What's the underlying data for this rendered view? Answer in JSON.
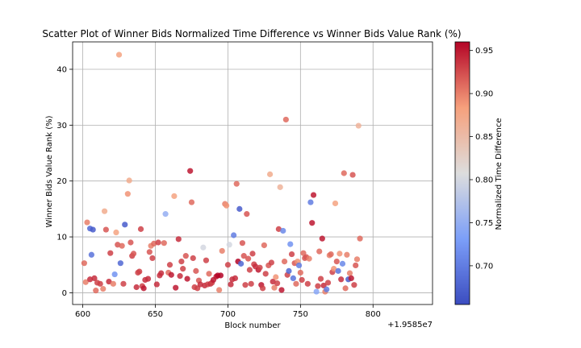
{
  "chart_data": {
    "type": "scatter",
    "title": "Scatter Plot of Winner Bids Normalized Time Difference vs Winner Bids Value Rank (%)",
    "xlabel": "Block number",
    "ylabel": "Winner Bids Value Rank (%)",
    "x_offset_label": "+1.9585e7",
    "x_ticks": [
      600,
      650,
      700,
      750,
      800
    ],
    "y_ticks": [
      0,
      10,
      20,
      30,
      40
    ],
    "xlim": [
      593,
      841
    ],
    "ylim": [
      -2.1,
      44.9
    ],
    "grid": true,
    "colorbar": {
      "label": "Normalized Time Difference",
      "colormap": "coolwarm",
      "range": [
        0.655,
        0.96
      ],
      "ticks": [
        0.7,
        0.75,
        0.8,
        0.85,
        0.9,
        0.95
      ],
      "tick_labels": [
        "0.70",
        "0.75",
        "0.80",
        "0.85",
        "0.90",
        "0.95"
      ]
    },
    "points": [
      [
        601,
        5.3,
        0.91
      ],
      [
        602,
        1.9,
        0.9
      ],
      [
        603,
        12.6,
        0.9
      ],
      [
        605,
        11.5,
        0.68
      ],
      [
        607,
        11.3,
        0.67
      ],
      [
        606,
        6.8,
        0.69
      ],
      [
        605,
        2.4,
        0.94
      ],
      [
        608,
        2.6,
        0.94
      ],
      [
        609,
        0.4,
        0.91
      ],
      [
        610,
        1.8,
        0.93
      ],
      [
        612,
        1.6,
        0.93
      ],
      [
        614,
        0.7,
        0.9
      ],
      [
        615,
        14.6,
        0.87
      ],
      [
        616,
        11.3,
        0.92
      ],
      [
        618,
        2.0,
        0.94
      ],
      [
        619,
        7.1,
        0.93
      ],
      [
        621,
        1.6,
        0.9
      ],
      [
        622,
        3.3,
        0.72
      ],
      [
        623,
        10.8,
        0.88
      ],
      [
        624,
        8.6,
        0.92
      ],
      [
        626,
        5.3,
        0.68
      ],
      [
        625,
        42.6,
        0.88
      ],
      [
        627,
        8.4,
        0.91
      ],
      [
        628,
        1.6,
        0.93
      ],
      [
        629,
        12.2,
        0.67
      ],
      [
        631,
        17.7,
        0.89
      ],
      [
        632,
        20.1,
        0.87
      ],
      [
        633,
        9.0,
        0.92
      ],
      [
        634,
        6.6,
        0.93
      ],
      [
        635,
        7.0,
        0.92
      ],
      [
        637,
        1.0,
        0.94
      ],
      [
        638,
        3.6,
        0.93
      ],
      [
        639,
        3.8,
        0.93
      ],
      [
        640,
        11.4,
        0.93
      ],
      [
        641,
        1.2,
        0.93
      ],
      [
        642,
        0.8,
        0.95
      ],
      [
        643,
        2.3,
        0.94
      ],
      [
        645,
        2.5,
        0.94
      ],
      [
        646,
        7.3,
        0.92
      ],
      [
        647,
        8.4,
        0.9
      ],
      [
        648,
        6.2,
        0.93
      ],
      [
        649,
        8.8,
        0.91
      ],
      [
        651,
        1.5,
        0.94
      ],
      [
        652,
        9.0,
        0.93
      ],
      [
        653,
        3.1,
        0.94
      ],
      [
        654,
        3.5,
        0.94
      ],
      [
        656,
        8.9,
        0.91
      ],
      [
        657,
        14.1,
        0.75
      ],
      [
        659,
        3.6,
        0.91
      ],
      [
        660,
        5.0,
        0.93
      ],
      [
        661,
        3.2,
        0.95
      ],
      [
        663,
        17.3,
        0.88
      ],
      [
        664,
        0.9,
        0.95
      ],
      [
        666,
        9.6,
        0.94
      ],
      [
        667,
        3.0,
        0.94
      ],
      [
        668,
        5.6,
        0.93
      ],
      [
        669,
        4.3,
        0.93
      ],
      [
        671,
        6.6,
        0.92
      ],
      [
        672,
        2.5,
        0.95
      ],
      [
        674,
        21.8,
        0.95
      ],
      [
        675,
        16.2,
        0.91
      ],
      [
        676,
        6.2,
        0.93
      ],
      [
        677,
        1.0,
        0.93
      ],
      [
        678,
        3.9,
        0.92
      ],
      [
        679,
        0.8,
        0.93
      ],
      [
        680,
        2.2,
        0.92
      ],
      [
        681,
        1.5,
        0.94
      ],
      [
        683,
        8.1,
        0.8
      ],
      [
        684,
        1.3,
        0.94
      ],
      [
        685,
        5.8,
        0.93
      ],
      [
        686,
        1.5,
        0.93
      ],
      [
        687,
        3.4,
        0.91
      ],
      [
        688,
        1.6,
        0.94
      ],
      [
        689,
        1.8,
        0.93
      ],
      [
        690,
        2.3,
        0.95
      ],
      [
        692,
        2.9,
        0.95
      ],
      [
        693,
        3.1,
        0.96
      ],
      [
        695,
        3.1,
        0.96
      ],
      [
        694,
        0.5,
        0.9
      ],
      [
        696,
        7.5,
        0.9
      ],
      [
        698,
        15.9,
        0.9
      ],
      [
        699,
        15.6,
        0.89
      ],
      [
        700,
        5.0,
        0.93
      ],
      [
        701,
        8.6,
        0.8
      ],
      [
        702,
        1.5,
        0.94
      ],
      [
        703,
        2.4,
        0.94
      ],
      [
        705,
        2.6,
        0.94
      ],
      [
        704,
        10.3,
        0.7
      ],
      [
        706,
        19.5,
        0.91
      ],
      [
        707,
        5.6,
        0.96
      ],
      [
        708,
        15.0,
        0.67
      ],
      [
        709,
        5.2,
        0.68
      ],
      [
        710,
        8.9,
        0.92
      ],
      [
        711,
        6.6,
        0.92
      ],
      [
        712,
        1.4,
        0.93
      ],
      [
        713,
        14.1,
        0.92
      ],
      [
        714,
        6.1,
        0.92
      ],
      [
        715,
        4.1,
        0.93
      ],
      [
        716,
        1.6,
        0.93
      ],
      [
        717,
        7.0,
        0.93
      ],
      [
        718,
        5.1,
        0.93
      ],
      [
        719,
        4.7,
        0.94
      ],
      [
        721,
        4.1,
        0.95
      ],
      [
        722,
        4.5,
        0.93
      ],
      [
        723,
        1.4,
        0.95
      ],
      [
        724,
        0.8,
        0.93
      ],
      [
        725,
        8.5,
        0.91
      ],
      [
        726,
        3.4,
        0.93
      ],
      [
        728,
        4.9,
        0.92
      ],
      [
        729,
        21.2,
        0.87
      ],
      [
        730,
        5.4,
        0.93
      ],
      [
        731,
        2.0,
        0.94
      ],
      [
        732,
        0.9,
        0.9
      ],
      [
        733,
        2.8,
        0.89
      ],
      [
        734,
        1.7,
        0.93
      ],
      [
        735,
        11.4,
        0.93
      ],
      [
        736,
        18.9,
        0.86
      ],
      [
        737,
        0.5,
        0.95
      ],
      [
        738,
        11.1,
        0.71
      ],
      [
        739,
        5.6,
        0.91
      ],
      [
        740,
        31.0,
        0.91
      ],
      [
        741,
        3.2,
        0.93
      ],
      [
        742,
        3.9,
        0.68
      ],
      [
        743,
        8.7,
        0.72
      ],
      [
        744,
        6.9,
        0.93
      ],
      [
        745,
        2.6,
        0.69
      ],
      [
        746,
        5.3,
        0.92
      ],
      [
        747,
        1.6,
        0.91
      ],
      [
        748,
        5.6,
        0.89
      ],
      [
        749,
        4.9,
        0.7
      ],
      [
        750,
        3.6,
        0.91
      ],
      [
        751,
        2.3,
        0.93
      ],
      [
        752,
        7.1,
        0.91
      ],
      [
        753,
        6.2,
        0.92
      ],
      [
        754,
        6.4,
        0.92
      ],
      [
        755,
        1.6,
        0.93
      ],
      [
        756,
        6.1,
        0.9
      ],
      [
        757,
        16.2,
        0.7
      ],
      [
        758,
        12.5,
        0.95
      ],
      [
        759,
        17.5,
        0.95
      ],
      [
        761,
        0.2,
        0.74
      ],
      [
        762,
        1.2,
        0.93
      ],
      [
        763,
        7.4,
        0.91
      ],
      [
        764,
        2.5,
        0.93
      ],
      [
        765,
        9.7,
        0.95
      ],
      [
        766,
        1.3,
        0.94
      ],
      [
        767,
        0.2,
        0.9
      ],
      [
        768,
        0.6,
        0.7
      ],
      [
        769,
        1.8,
        0.93
      ],
      [
        770,
        6.7,
        0.9
      ],
      [
        771,
        6.9,
        0.91
      ],
      [
        772,
        3.7,
        0.93
      ],
      [
        773,
        4.3,
        0.89
      ],
      [
        774,
        16.0,
        0.88
      ],
      [
        775,
        5.6,
        0.92
      ],
      [
        776,
        3.9,
        0.69
      ],
      [
        777,
        7.0,
        0.89
      ],
      [
        778,
        2.4,
        0.94
      ],
      [
        779,
        5.2,
        0.71
      ],
      [
        780,
        21.4,
        0.91
      ],
      [
        781,
        0.8,
        0.91
      ],
      [
        782,
        6.8,
        0.9
      ],
      [
        783,
        2.4,
        0.67
      ],
      [
        784,
        3.5,
        0.9
      ],
      [
        785,
        2.6,
        0.95
      ],
      [
        786,
        21.1,
        0.92
      ],
      [
        787,
        1.4,
        0.93
      ],
      [
        788,
        4.9,
        0.92
      ],
      [
        789,
        6.0,
        0.9
      ],
      [
        790,
        29.9,
        0.86
      ],
      [
        791,
        9.7,
        0.91
      ]
    ]
  }
}
